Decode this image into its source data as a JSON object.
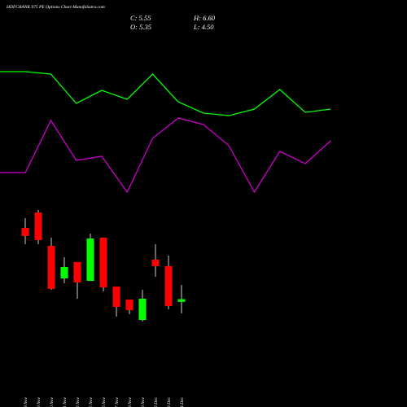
{
  "chart_data": [
    {
      "type": "line",
      "title": "HDFCBANK 975 PE Options  Chart MunafaSutra.com",
      "x": [
        0,
        1,
        2,
        3,
        4,
        5,
        6,
        7,
        8,
        9,
        10,
        11,
        12,
        13
      ],
      "xlim": [
        0,
        16
      ],
      "ylim": [
        0,
        100
      ],
      "series": [
        {
          "color": "#00ff00",
          "values": [
            64.8,
            64.8,
            63.6,
            49.2,
            55.6,
            51.2,
            63.6,
            50,
            44.4,
            43.2,
            46.4,
            56,
            44.8,
            46.4
          ]
        },
        {
          "color": "#cc00cc",
          "values": [
            15.2,
            15.2,
            40.8,
            21.2,
            23.2,
            5.6,
            32,
            42,
            38.8,
            28.4,
            5.6,
            25.6,
            19.6,
            30.8
          ]
        }
      ]
    },
    {
      "type": "candlestick",
      "close_label": "C: 5.55",
      "high_label": "H: 6.60",
      "open_label": "O: 5.35",
      "low_label": "L: 4.50",
      "categories": [
        "18 Nov",
        "19 Nov",
        "20 Nov",
        "21 Nov",
        "22 Nov",
        "25 Nov",
        "26 Nov",
        "27 Nov",
        "28 Nov",
        "29 Nov",
        "02 Dec",
        "03 Dec",
        "04 Dec"
      ],
      "open": [
        10.8,
        11.94,
        9.48,
        7.08,
        8.28,
        6.9,
        10.08,
        6.48,
        5.52,
        4.02,
        8.46,
        7.98,
        5.35
      ],
      "high": [
        11.52,
        12.12,
        10.08,
        8.64,
        8.28,
        10.38,
        10.08,
        6.48,
        5.52,
        6.24,
        9.6,
        8.76,
        6.6
      ],
      "low": [
        9.6,
        9.6,
        6.24,
        6.72,
        5.58,
        6.9,
        6.12,
        4.26,
        4.44,
        3.9,
        7.2,
        4.8,
        4.5
      ],
      "close": [
        10.2,
        9.9,
        6.3,
        7.92,
        6.78,
        10.02,
        6.42,
        4.98,
        4.74,
        5.58,
        7.98,
        5.04,
        5.55
      ],
      "up_color": "#00ff00",
      "down_color": "#ff0000",
      "ylim": [
        0.6,
        12.6
      ]
    }
  ]
}
